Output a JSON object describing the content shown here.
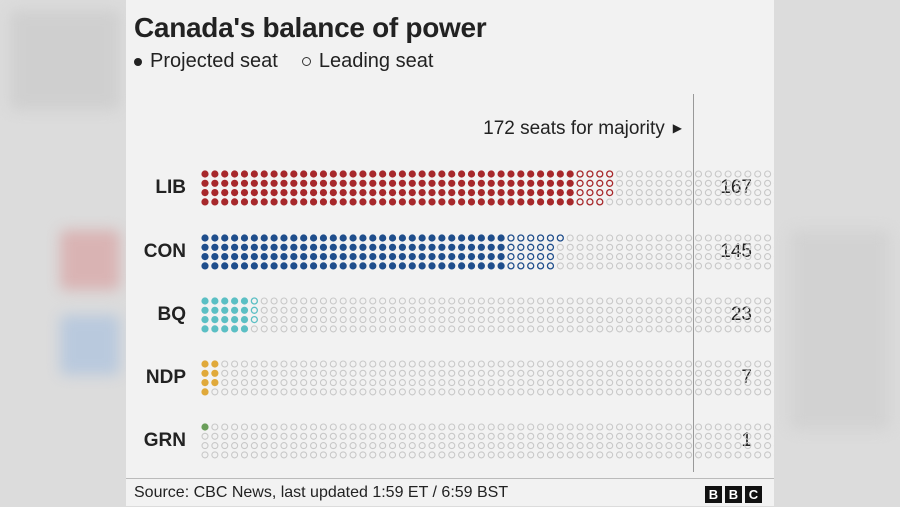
{
  "title": "Canada's balance of power",
  "legend": {
    "projected": "Projected seat",
    "leading": "Leading seat"
  },
  "majority_label": "172 seats for majority",
  "footer": {
    "source": "Source: CBC News,  last updated  1:59 ET / 6:59 BST"
  },
  "logo": [
    "B",
    "B",
    "C"
  ],
  "colors": {
    "LIB": "#a7282b",
    "CON": "#1f4e8c",
    "BQ": "#5bbfc4",
    "NDP": "#e0a93a",
    "GRN": "#6a9e5a",
    "empty": "#c8c8c8"
  },
  "chart_data": {
    "type": "waffle",
    "title": "Canada's balance of power",
    "total_seats": 343,
    "majority": 172,
    "parties": [
      {
        "name": "LIB",
        "total": 167,
        "projected": 152,
        "leading": 15
      },
      {
        "name": "CON",
        "total": 145,
        "projected": 124,
        "leading": 21
      },
      {
        "name": "BQ",
        "total": 23,
        "projected": 20,
        "leading": 3
      },
      {
        "name": "NDP",
        "total": 7,
        "projected": 7,
        "leading": 0
      },
      {
        "name": "GRN",
        "total": 1,
        "projected": 1,
        "leading": 0
      }
    ]
  }
}
